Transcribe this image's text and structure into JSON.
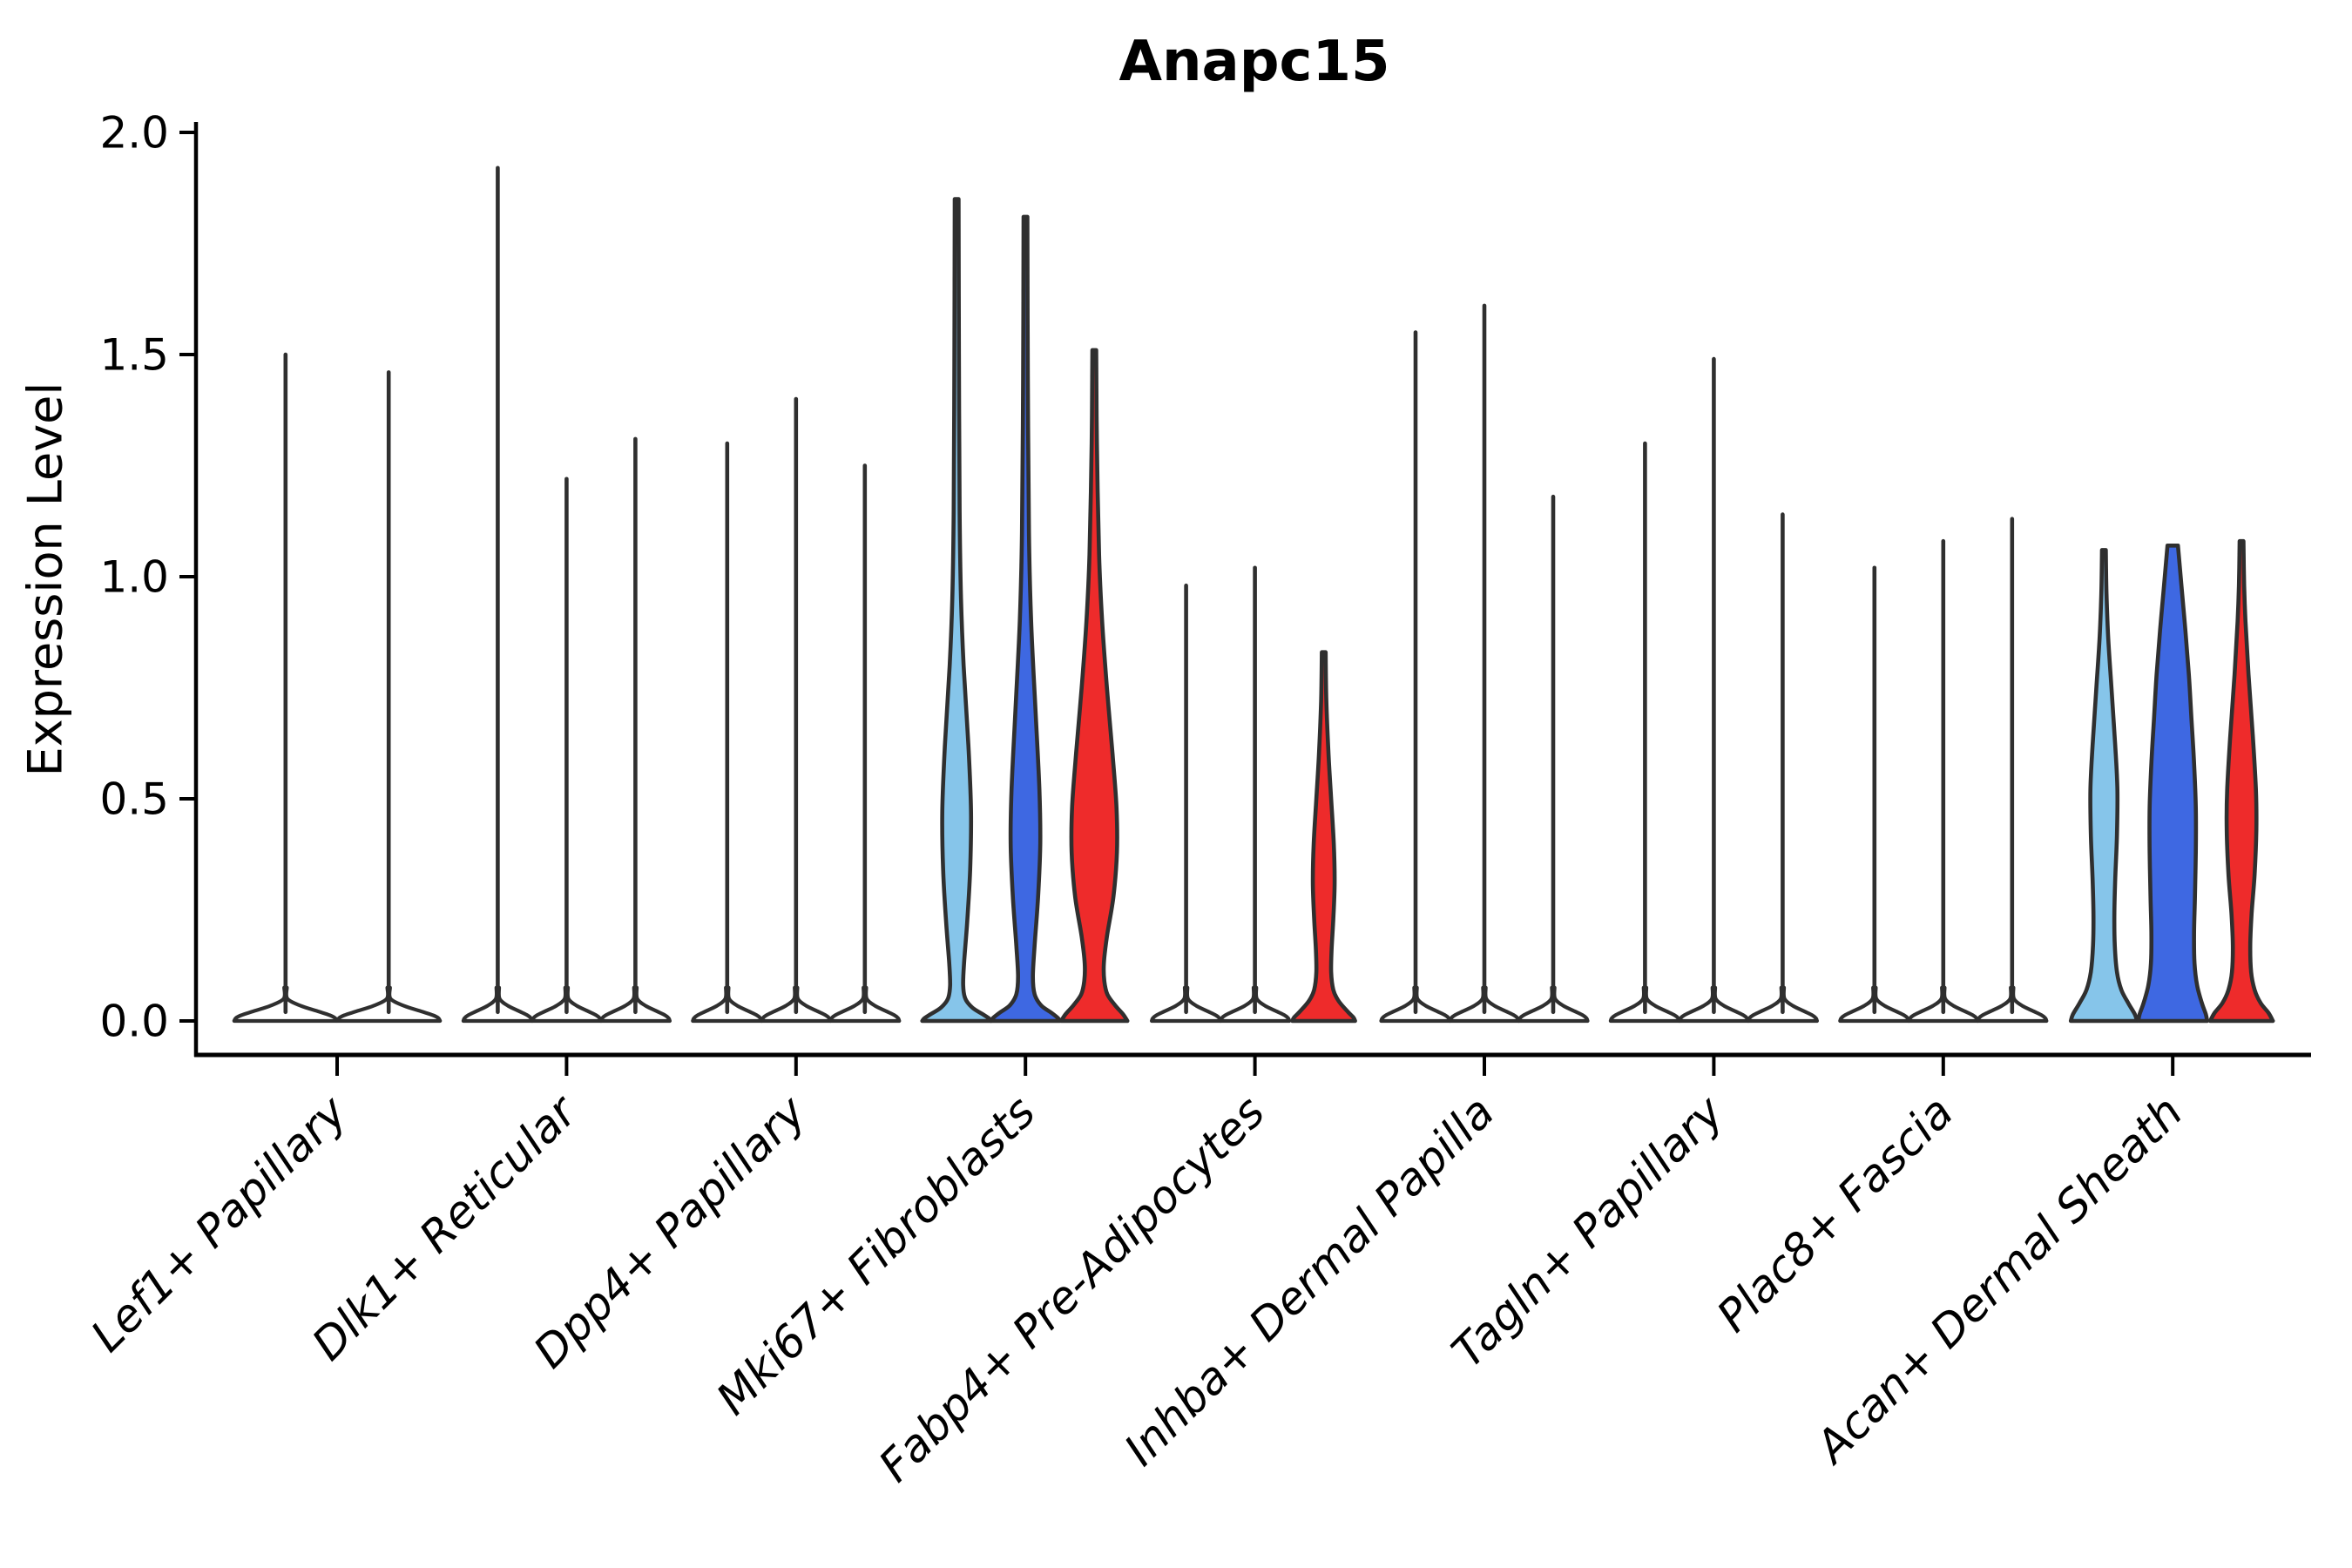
{
  "chart_data": {
    "type": "violin",
    "title": "Anapc15",
    "ylabel": "Expression Level",
    "xlabel": "",
    "ylim": [
      0,
      2.0
    ],
    "yticks": [
      0.0,
      0.5,
      1.0,
      1.5,
      2.0
    ],
    "ytick_labels": [
      "0.0",
      "0.5",
      "1.0",
      "1.5",
      "2.0"
    ],
    "grid": false,
    "legend": "none",
    "palette": {
      "lightblue": "#86c5ea",
      "blue": "#3e68e2",
      "red": "#ee2b2b",
      "white": "#ffffff",
      "outline": "#2f2f2f",
      "axis": "#000000"
    },
    "categories": [
      "Lef1+ Papillary",
      "Dlk1+ Reticular",
      "Dpp4+ Papillary",
      "Mki67+ Fibroblasts",
      "Fabp4+ Pre-Adipocytes",
      "Inhba+ Dermal Papilla",
      "Tagln+ Papillary",
      "Plac8+ Fascia",
      "Acan+ Dermal Sheath"
    ],
    "groups": [
      {
        "category": "Lef1+ Papillary",
        "violins": [
          {
            "fill": "white",
            "max": 1.5
          },
          {
            "fill": "white",
            "max": 1.46
          }
        ]
      },
      {
        "category": "Dlk1+ Reticular",
        "violins": [
          {
            "fill": "white",
            "max": 1.92
          },
          {
            "fill": "white",
            "max": 1.22
          },
          {
            "fill": "white",
            "max": 1.31
          }
        ]
      },
      {
        "category": "Dpp4+ Papillary",
        "violins": [
          {
            "fill": "white",
            "max": 1.3
          },
          {
            "fill": "white",
            "max": 1.4
          },
          {
            "fill": "white",
            "max": 1.25
          }
        ]
      },
      {
        "category": "Mki67+ Fibroblasts",
        "violins": [
          {
            "fill": "lightblue",
            "max": 1.85,
            "shape": [
              [
                1.85,
                2.2
              ],
              [
                1.5,
                2.6
              ],
              [
                1.15,
                3.4
              ],
              [
                0.95,
                5
              ],
              [
                0.8,
                8
              ],
              [
                0.62,
                13.5
              ],
              [
                0.47,
                16.5
              ],
              [
                0.34,
                15.5
              ],
              [
                0.22,
                12
              ],
              [
                0.13,
                8.5
              ],
              [
                0.08,
                7.5
              ],
              [
                0.05,
                10
              ],
              [
                0.03,
                18
              ],
              [
                0.015,
                30
              ],
              [
                0.006,
                37
              ],
              [
                0,
                39.5
              ]
            ]
          },
          {
            "fill": "blue",
            "max": 1.81,
            "shape": [
              [
                1.81,
                2.2
              ],
              [
                1.45,
                2.7
              ],
              [
                1.1,
                4
              ],
              [
                0.9,
                6.5
              ],
              [
                0.7,
                11.5
              ],
              [
                0.52,
                16
              ],
              [
                0.4,
                17
              ],
              [
                0.28,
                14.5
              ],
              [
                0.17,
                10.5
              ],
              [
                0.1,
                8.5
              ],
              [
                0.06,
                10.5
              ],
              [
                0.035,
                18
              ],
              [
                0.018,
                30
              ],
              [
                0.007,
                37
              ],
              [
                0,
                39.5
              ]
            ]
          },
          {
            "fill": "red",
            "max": 1.51,
            "shape": [
              [
                1.51,
                2.2
              ],
              [
                1.3,
                3
              ],
              [
                1.05,
                5.5
              ],
              [
                0.9,
                9
              ],
              [
                0.75,
                14.5
              ],
              [
                0.6,
                21
              ],
              [
                0.48,
                25.5
              ],
              [
                0.38,
                26
              ],
              [
                0.28,
                22
              ],
              [
                0.19,
                14.5
              ],
              [
                0.13,
                11
              ],
              [
                0.09,
                11.5
              ],
              [
                0.06,
                15
              ],
              [
                0.035,
                24
              ],
              [
                0.015,
                33
              ],
              [
                0,
                38
              ]
            ]
          }
        ]
      },
      {
        "category": "Fabp4+ Pre-Adipocytes",
        "violins": [
          {
            "fill": "white",
            "max": 0.98
          },
          {
            "fill": "white",
            "max": 1.02
          },
          {
            "fill": "red",
            "max": 0.83,
            "shape": [
              [
                0.83,
                2.2
              ],
              [
                0.72,
                3
              ],
              [
                0.6,
                5.5
              ],
              [
                0.5,
                8.5
              ],
              [
                0.4,
                11.5
              ],
              [
                0.31,
                12.5
              ],
              [
                0.23,
                11
              ],
              [
                0.16,
                9
              ],
              [
                0.11,
                8.5
              ],
              [
                0.07,
                11
              ],
              [
                0.045,
                17
              ],
              [
                0.02,
                28
              ],
              [
                0.008,
                34
              ],
              [
                0,
                36
              ]
            ]
          }
        ]
      },
      {
        "category": "Inhba+ Dermal Papilla",
        "violins": [
          {
            "fill": "white",
            "max": 1.55
          },
          {
            "fill": "white",
            "max": 1.61
          },
          {
            "fill": "white",
            "max": 1.18
          }
        ]
      },
      {
        "category": "Tagln+ Papillary",
        "violins": [
          {
            "fill": "white",
            "max": 1.3
          },
          {
            "fill": "white",
            "max": 1.49
          },
          {
            "fill": "white",
            "max": 1.14
          }
        ]
      },
      {
        "category": "Plac8+ Fascia",
        "violins": [
          {
            "fill": "white",
            "max": 1.02
          },
          {
            "fill": "white",
            "max": 1.08
          },
          {
            "fill": "white",
            "max": 1.13
          }
        ]
      },
      {
        "category": "Acan+ Dermal Sheath",
        "violins": [
          {
            "fill": "lightblue",
            "max": 1.06,
            "shape": [
              [
                1.06,
                2.2
              ],
              [
                0.96,
                3
              ],
              [
                0.86,
                5
              ],
              [
                0.74,
                9
              ],
              [
                0.62,
                13
              ],
              [
                0.52,
                15.5
              ],
              [
                0.42,
                15
              ],
              [
                0.32,
                13
              ],
              [
                0.24,
                12
              ],
              [
                0.17,
                12.5
              ],
              [
                0.11,
                15
              ],
              [
                0.07,
                20
              ],
              [
                0.04,
                28
              ],
              [
                0.015,
                35.5
              ],
              [
                0,
                38
              ]
            ]
          },
          {
            "fill": "blue",
            "max": 1.07,
            "shape": [
              [
                1.07,
                6
              ],
              [
                0.98,
                10
              ],
              [
                0.88,
                14.5
              ],
              [
                0.78,
                18.5
              ],
              [
                0.68,
                21.5
              ],
              [
                0.58,
                24.5
              ],
              [
                0.48,
                26.5
              ],
              [
                0.38,
                26.5
              ],
              [
                0.28,
                25.5
              ],
              [
                0.2,
                24.5
              ],
              [
                0.13,
                25
              ],
              [
                0.08,
                28
              ],
              [
                0.04,
                33.5
              ],
              [
                0.015,
                38
              ],
              [
                0,
                39.5
              ]
            ]
          },
          {
            "fill": "red",
            "max": 1.08,
            "shape": [
              [
                1.08,
                2.2
              ],
              [
                0.98,
                3
              ],
              [
                0.9,
                4.5
              ],
              [
                0.78,
                8
              ],
              [
                0.64,
                13
              ],
              [
                0.52,
                16.5
              ],
              [
                0.43,
                17
              ],
              [
                0.33,
                15
              ],
              [
                0.24,
                11.5
              ],
              [
                0.17,
                10
              ],
              [
                0.11,
                11
              ],
              [
                0.07,
                15
              ],
              [
                0.04,
                22
              ],
              [
                0.018,
                31
              ],
              [
                0,
                36
              ]
            ]
          }
        ]
      }
    ]
  }
}
